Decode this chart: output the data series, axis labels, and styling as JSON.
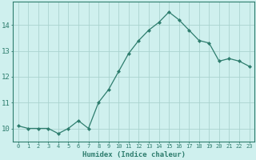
{
  "xlabel": "Humidex (Indice chaleur)",
  "x": [
    0,
    1,
    2,
    3,
    4,
    5,
    6,
    7,
    8,
    9,
    10,
    11,
    12,
    13,
    14,
    15,
    16,
    17,
    18,
    19,
    20,
    21,
    22,
    23
  ],
  "y": [
    10.1,
    10.0,
    10.0,
    10.0,
    9.8,
    10.0,
    10.3,
    10.0,
    11.0,
    11.5,
    12.2,
    12.9,
    13.4,
    13.8,
    14.1,
    14.5,
    14.2,
    13.8,
    13.4,
    13.3,
    12.6,
    12.7,
    12.6,
    12.4
  ],
  "line_color": "#2e7d6e",
  "marker": "D",
  "marker_size": 2.0,
  "bg_color": "#cff0ee",
  "grid_color": "#aad4d0",
  "ylim": [
    9.5,
    14.9
  ],
  "yticks": [
    10,
    11,
    12,
    13,
    14
  ],
  "tick_color": "#2e7d6e",
  "label_color": "#2e7d6e",
  "spine_color": "#2e7d6e",
  "xtick_fontsize": 5.0,
  "ytick_fontsize": 6.5,
  "xlabel_fontsize": 6.5
}
